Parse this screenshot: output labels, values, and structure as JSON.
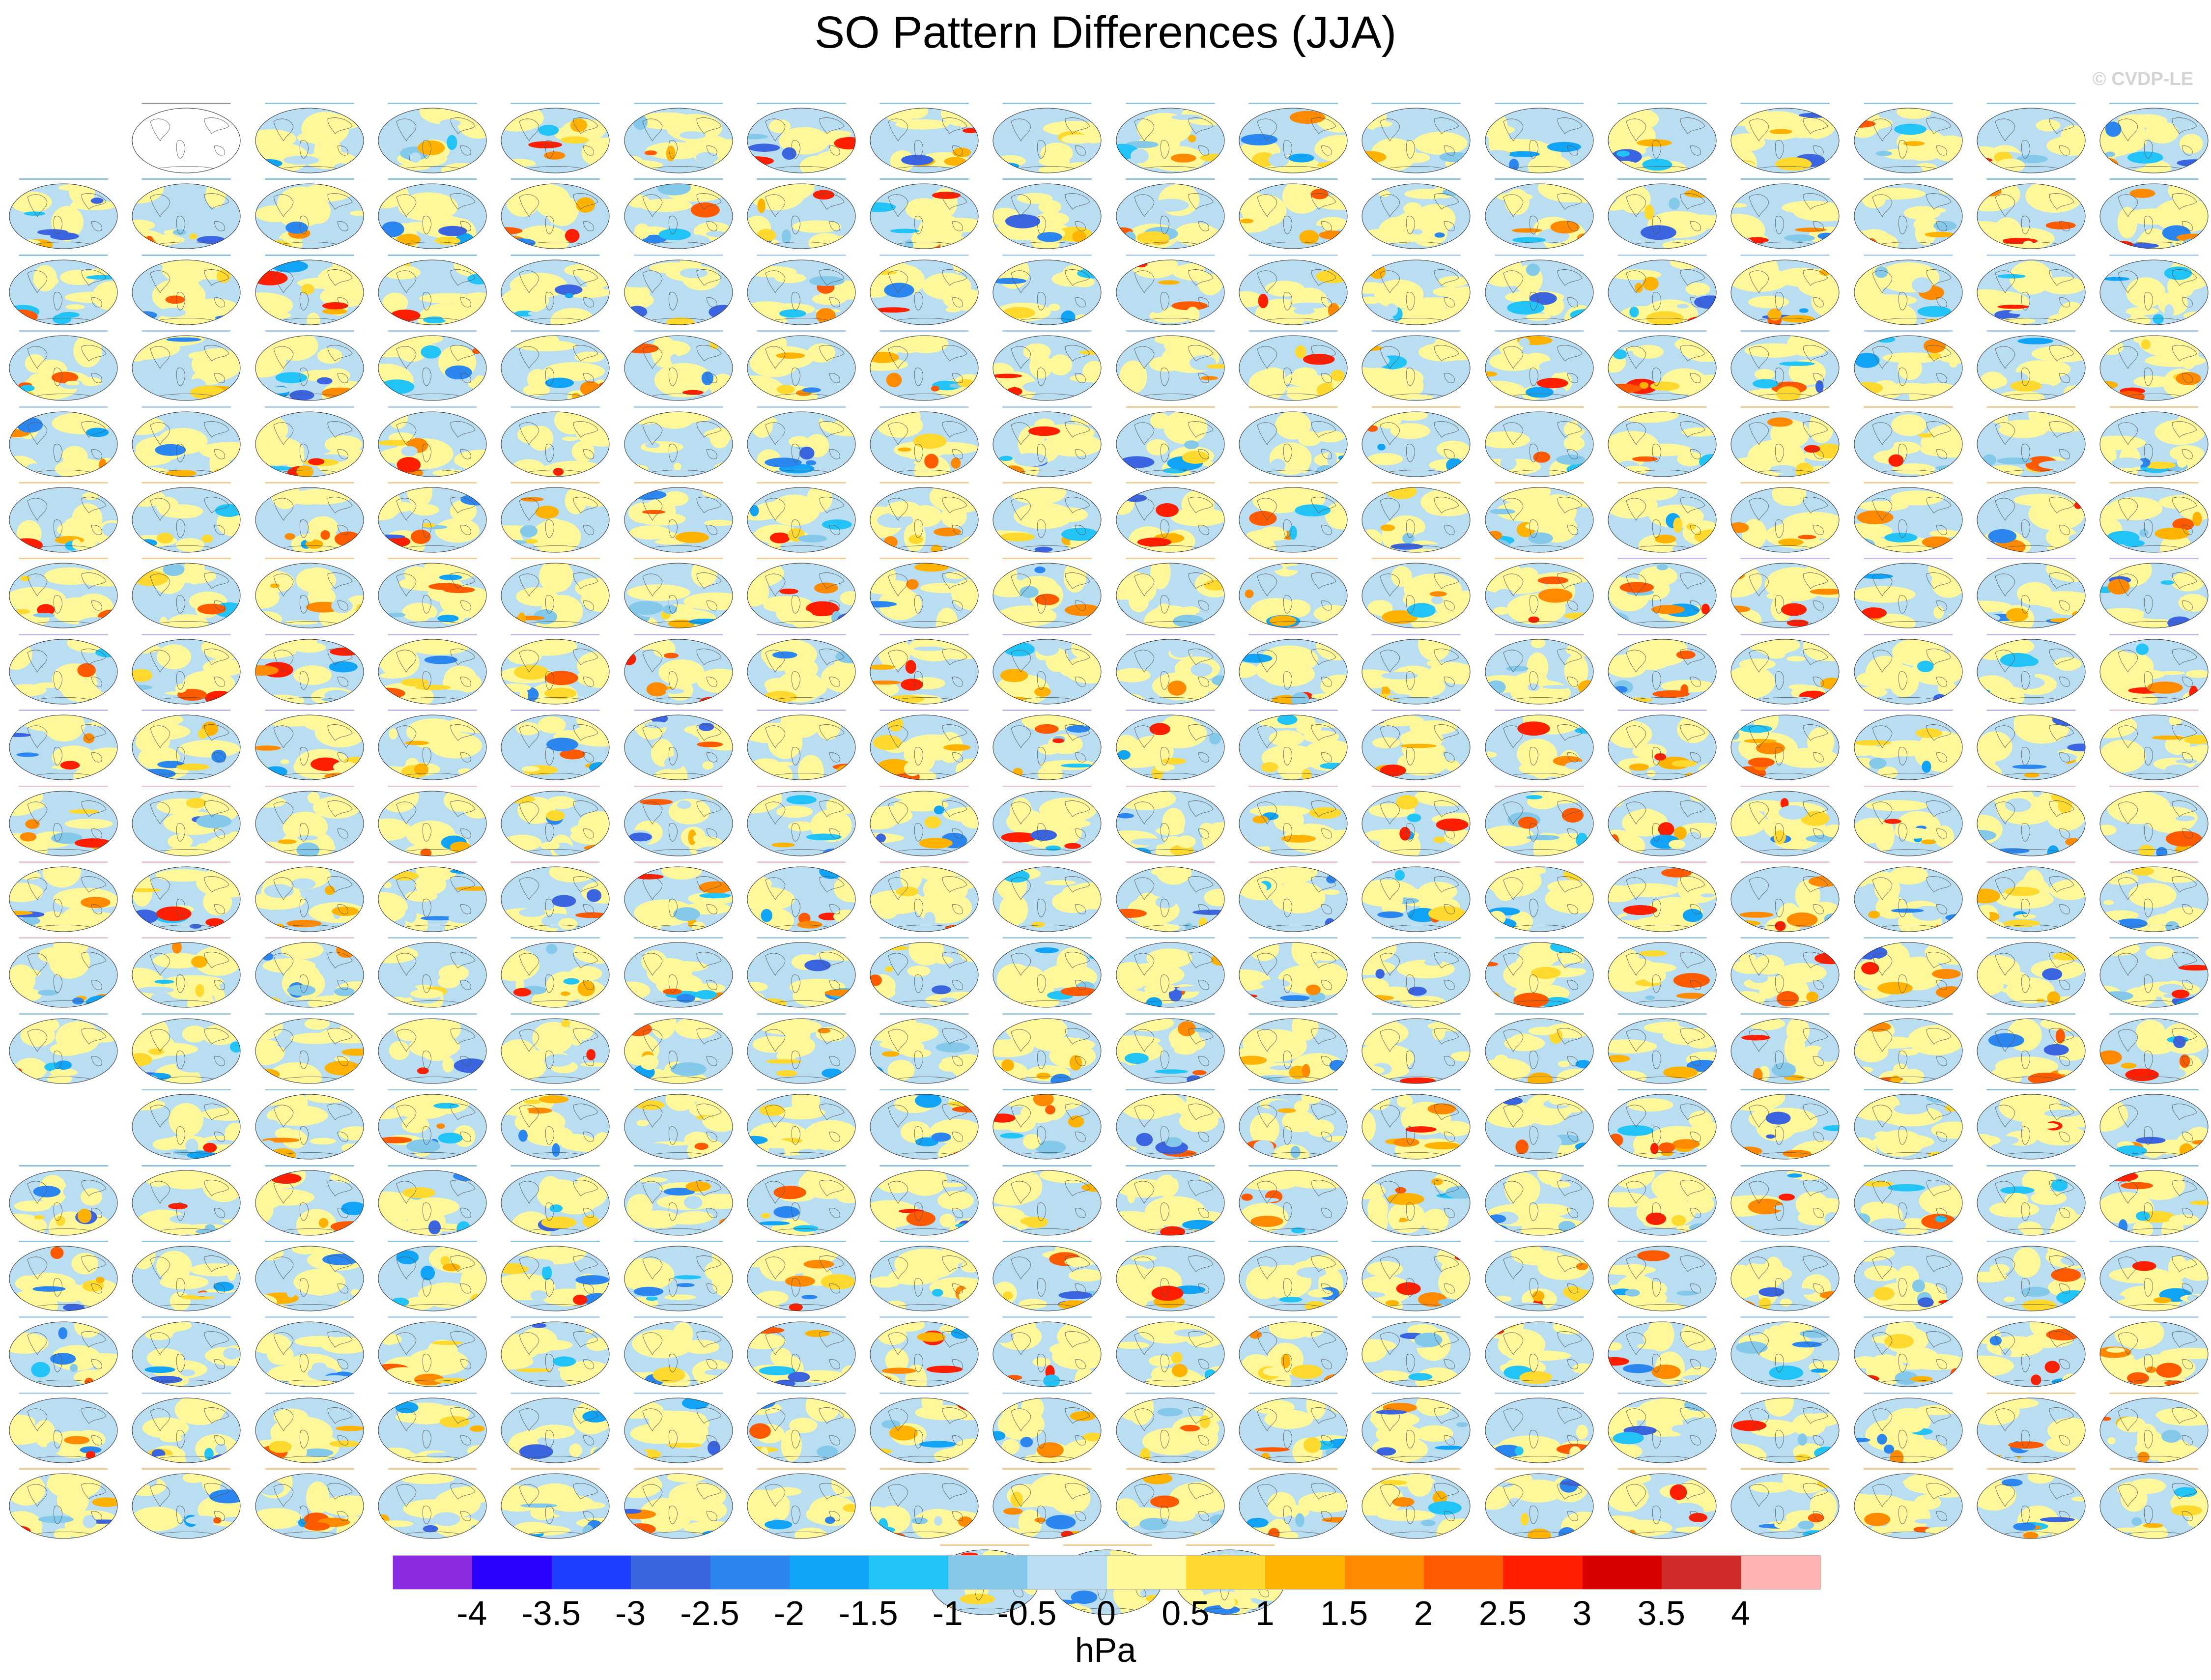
{
  "title": "SO Pattern Differences (JJA)",
  "watermark": "© CVDP-LE",
  "panel_grid": {
    "rows": 19,
    "cols": 18,
    "final_row_panels": 3
  },
  "colorbar": {
    "units": "hPa",
    "tick_labels": [
      "-4",
      "-3.5",
      "-3",
      "-2.5",
      "-2",
      "-1.5",
      "-1",
      "-0.5",
      "0",
      "0.5",
      "1",
      "1.5",
      "2",
      "2.5",
      "3",
      "3.5",
      "4"
    ],
    "colors": [
      "#8a2be2",
      "#2a00ff",
      "#1f3fff",
      "#3a64e0",
      "#2b86f0",
      "#11a3f5",
      "#22c3f7",
      "#85c9ea",
      "#b9ddf1",
      "#fff89a",
      "#ffd92e",
      "#ffb300",
      "#ff8a00",
      "#ff5a00",
      "#ff1f00",
      "#d90000",
      "#d12a2a",
      "#ffb3b3"
    ]
  }
}
